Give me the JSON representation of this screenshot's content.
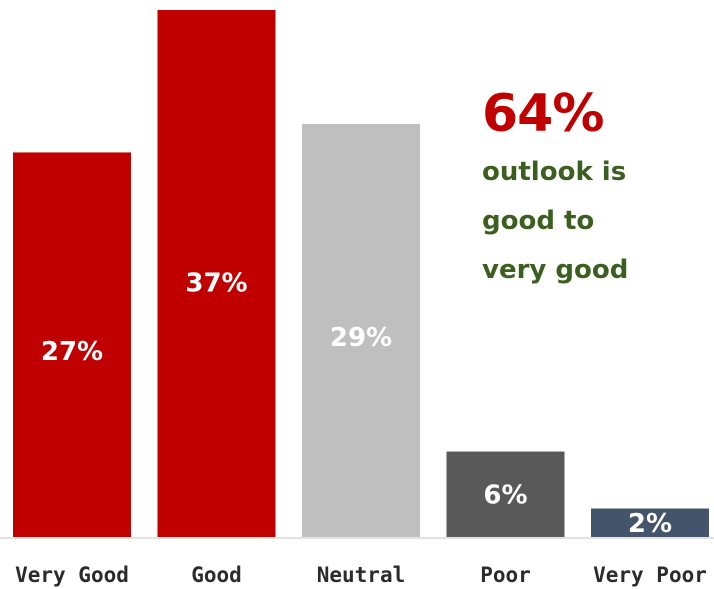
{
  "chart_data": {
    "type": "bar",
    "categories": [
      "Very Good",
      "Good",
      "Neutral",
      "Poor",
      "Very Poor"
    ],
    "values": [
      27,
      37,
      29,
      6,
      2
    ],
    "value_labels": [
      "27%",
      "37%",
      "29%",
      "6%",
      "2%"
    ],
    "bar_colors": [
      "#c00000",
      "#c00000",
      "#bfbfbf",
      "#595959",
      "#44546a"
    ],
    "ylim": [
      0,
      37
    ],
    "grid": false,
    "legend": "none"
  },
  "callout": {
    "value": "64%",
    "lines": [
      "outlook is",
      "good to",
      "very good"
    ],
    "value_color": "#c00000",
    "text_color": "#3a5f1f"
  }
}
